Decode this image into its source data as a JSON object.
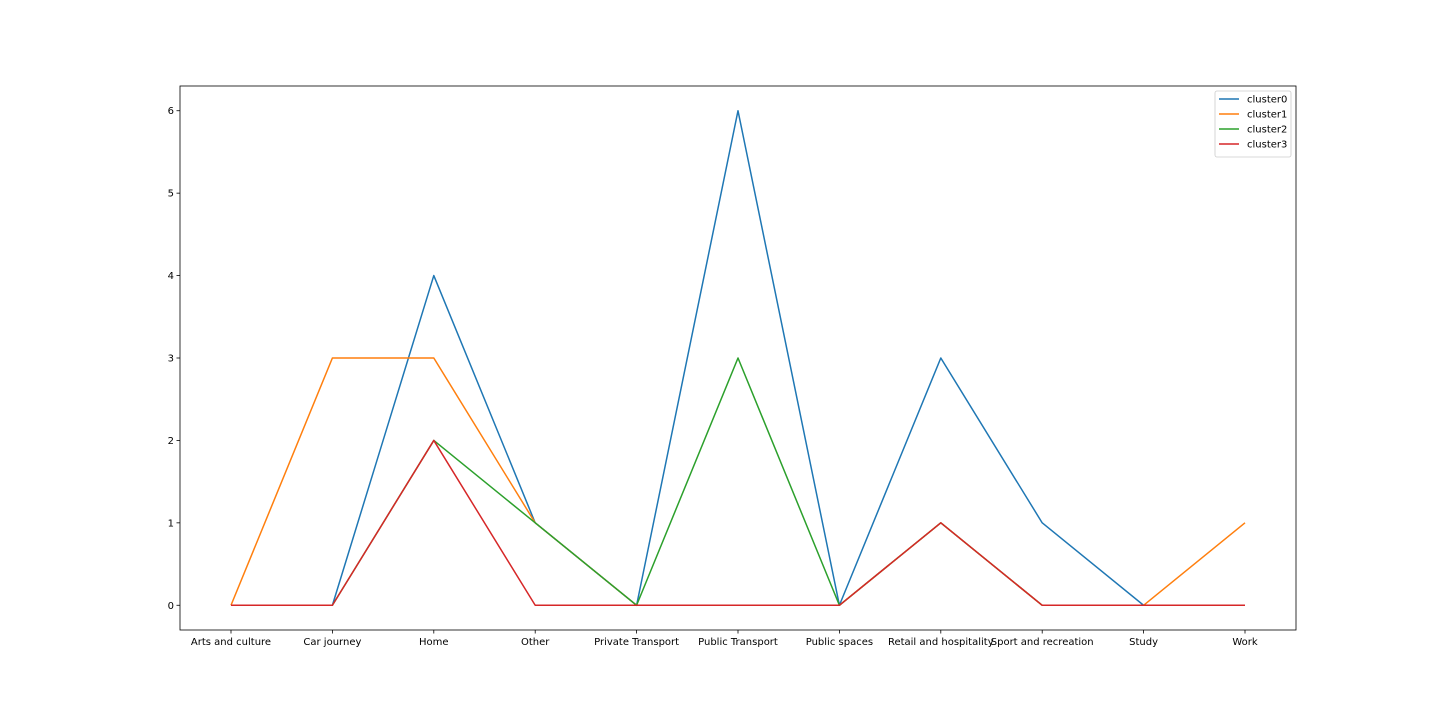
{
  "chart_data": {
    "type": "line",
    "title": "",
    "xlabel": "",
    "ylabel": "",
    "categories": [
      "Arts and culture",
      "Car journey",
      "Home",
      "Other",
      "Private Transport",
      "Public Transport",
      "Public spaces",
      "Retail and hospitality",
      "Sport and recreation",
      "Study",
      "Work"
    ],
    "ylim": [
      -0.3,
      6.3
    ],
    "yticks": [
      0,
      1,
      2,
      3,
      4,
      5,
      6
    ],
    "grid": false,
    "legend_position": "top-right",
    "series": [
      {
        "name": "cluster0",
        "color": "#1f77b4",
        "values": [
          0,
          0,
          4,
          1,
          0,
          6,
          0,
          3,
          1,
          0,
          0
        ]
      },
      {
        "name": "cluster1",
        "color": "#ff7f0e",
        "values": [
          0,
          3,
          3,
          1,
          0,
          0,
          0,
          1,
          0,
          0,
          1
        ]
      },
      {
        "name": "cluster2",
        "color": "#2ca02c",
        "values": [
          0,
          0,
          2,
          1,
          0,
          3,
          0,
          1,
          0,
          0,
          0
        ]
      },
      {
        "name": "cluster3",
        "color": "#d62728",
        "values": [
          0,
          0,
          2,
          0,
          0,
          0,
          0,
          1,
          0,
          0,
          0
        ]
      }
    ]
  }
}
